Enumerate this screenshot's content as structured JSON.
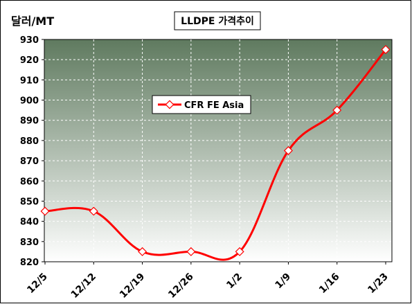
{
  "chart_data": {
    "type": "line",
    "title": "LLDPE 가격추이",
    "ylabel": "달러/MT",
    "xlabel": "",
    "categories": [
      "12/5",
      "12/12",
      "12/19",
      "12/26",
      "1/2",
      "1/9",
      "1/16",
      "1/23"
    ],
    "ylim": [
      820,
      930
    ],
    "yticks": [
      820,
      830,
      840,
      850,
      860,
      870,
      880,
      890,
      900,
      910,
      920,
      930
    ],
    "grid": true,
    "legend_position": "center-left",
    "series": [
      {
        "name": "CFR FE Asia",
        "values": [
          845,
          845,
          825,
          825,
          825,
          875,
          895,
          925
        ]
      }
    ]
  },
  "colors": {
    "series_line": "#ff0000",
    "plot_bg_top": "#5f7a5f",
    "plot_bg_bottom": "#ffffff",
    "grid": "#ffffff"
  }
}
